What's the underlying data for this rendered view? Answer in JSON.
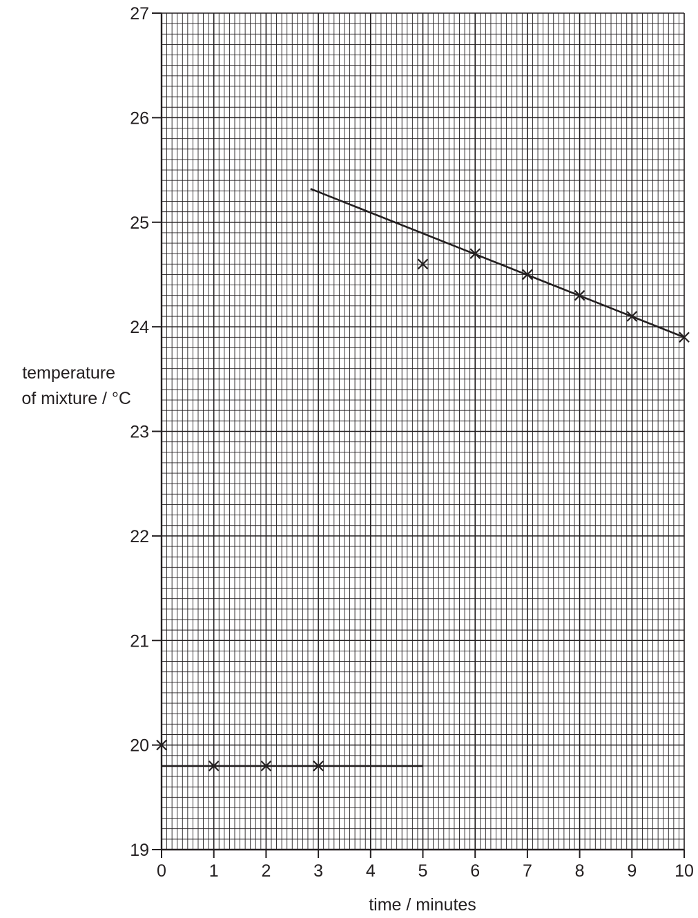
{
  "chart_data": {
    "type": "scatter",
    "title": "",
    "xlabel": "time / minutes",
    "ylabel_lines": [
      "temperature",
      "of mixture / °C"
    ],
    "xlim": [
      0,
      10
    ],
    "ylim": [
      19,
      27
    ],
    "x_major_step": 1,
    "y_major_step": 1,
    "x_minor_per_major": 10,
    "y_minor_per_major": 10,
    "grid": true,
    "x_ticks": [
      "0",
      "1",
      "2",
      "3",
      "4",
      "5",
      "6",
      "7",
      "8",
      "9",
      "10"
    ],
    "y_ticks": [
      "19",
      "20",
      "21",
      "22",
      "23",
      "24",
      "25",
      "26",
      "27"
    ],
    "points": [
      {
        "x": 0,
        "y": 20.0
      },
      {
        "x": 1,
        "y": 19.8
      },
      {
        "x": 2,
        "y": 19.8
      },
      {
        "x": 3,
        "y": 19.8
      },
      {
        "x": 5,
        "y": 24.6
      },
      {
        "x": 6,
        "y": 24.7
      },
      {
        "x": 7,
        "y": 24.5
      },
      {
        "x": 8,
        "y": 24.3
      },
      {
        "x": 9,
        "y": 24.1
      },
      {
        "x": 10,
        "y": 23.9
      }
    ],
    "lines": [
      {
        "x": [
          0,
          5
        ],
        "y": [
          19.8,
          19.8
        ]
      },
      {
        "x": [
          2.85,
          10
        ],
        "y": [
          25.32,
          23.9
        ]
      }
    ],
    "colors": {
      "ink": "#231f20",
      "grid_minor": "#231f20",
      "background": "#ffffff"
    }
  }
}
